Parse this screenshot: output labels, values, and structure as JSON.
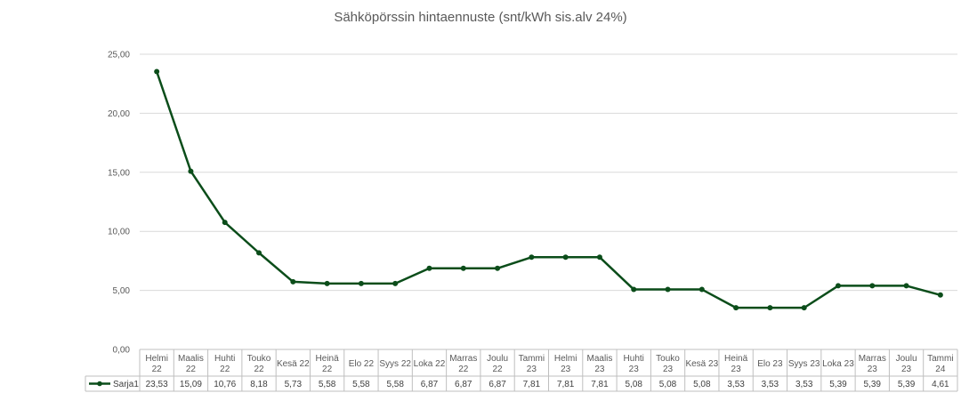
{
  "chart_data": {
    "type": "line",
    "title": "Sähköpörssin hintaennuste (snt/kWh sis.alv 24%)",
    "xlabel": "",
    "ylabel": "",
    "ylim": [
      0,
      25
    ],
    "ytick_labels": [
      "0,00",
      "5,00",
      "10,00",
      "15,00",
      "20,00",
      "25,00"
    ],
    "grid": true,
    "legend_position": "bottom-left (data table)",
    "categories": [
      [
        "Helmi",
        "22"
      ],
      [
        "Maalis",
        "22"
      ],
      [
        "Huhti",
        "22"
      ],
      [
        "Touko",
        "22"
      ],
      [
        "Kesä 22"
      ],
      [
        "Heinä",
        "22"
      ],
      [
        "Elo 22"
      ],
      [
        "Syys 22"
      ],
      [
        "Loka 22"
      ],
      [
        "Marras",
        "22"
      ],
      [
        "Joulu",
        "22"
      ],
      [
        "Tammi",
        "23"
      ],
      [
        "Helmi",
        "23"
      ],
      [
        "Maalis",
        "23"
      ],
      [
        "Huhti",
        "23"
      ],
      [
        "Touko",
        "23"
      ],
      [
        "Kesä 23"
      ],
      [
        "Heinä",
        "23"
      ],
      [
        "Elo 23"
      ],
      [
        "Syys 23"
      ],
      [
        "Loka 23"
      ],
      [
        "Marras",
        "23"
      ],
      [
        "Joulu",
        "23"
      ],
      [
        "Tammi",
        "24"
      ]
    ],
    "series": [
      {
        "name": "Sarja1",
        "color": "#0b4d1a",
        "values": [
          23.53,
          15.09,
          10.76,
          8.18,
          5.73,
          5.58,
          5.58,
          5.58,
          6.87,
          6.87,
          6.87,
          7.81,
          7.81,
          7.81,
          5.08,
          5.08,
          5.08,
          3.53,
          3.53,
          3.53,
          5.39,
          5.39,
          5.39,
          4.61
        ],
        "value_labels": [
          "23,53",
          "15,09",
          "10,76",
          "8,18",
          "5,73",
          "5,58",
          "5,58",
          "5,58",
          "6,87",
          "6,87",
          "6,87",
          "7,81",
          "7,81",
          "7,81",
          "5,08",
          "5,08",
          "5,08",
          "3,53",
          "3,53",
          "3,53",
          "5,39",
          "5,39",
          "5,39",
          "4,61"
        ]
      }
    ]
  }
}
